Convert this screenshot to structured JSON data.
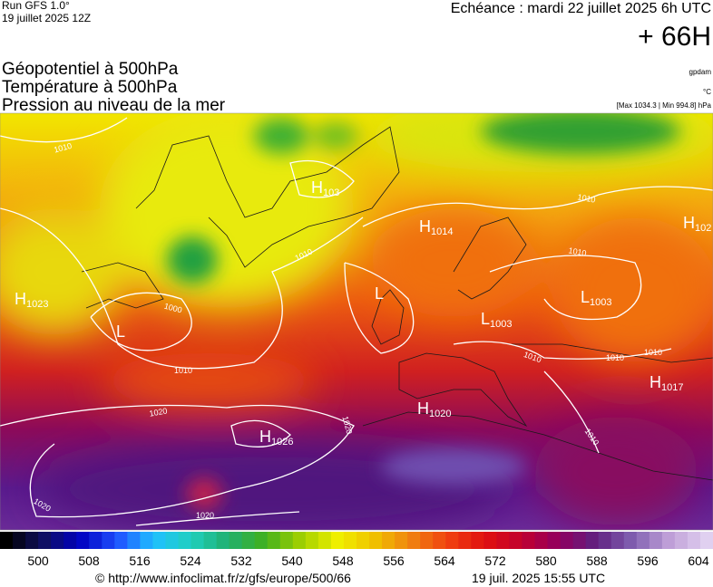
{
  "header": {
    "run": "Run GFS 1.0°",
    "run_date": "19 juillet 2025 12Z",
    "valid": "Echéance : mardi 22 juillet 2025 6h UTC",
    "lead": "+ 66H",
    "fields": [
      "Géopotentiel à 500hPa",
      "Température à 500hPa",
      "Pression au niveau de la mer"
    ],
    "units": [
      "gpdam",
      "°C",
      "[Max 1034.3 | Min 994.8] hPa"
    ]
  },
  "pressure_centers": [
    {
      "type": "H",
      "value": "1023"
    },
    {
      "type": "L",
      "value": null
    },
    {
      "type": "H",
      "value": "103"
    },
    {
      "type": "H",
      "value": "1014"
    },
    {
      "type": "H",
      "value": "102"
    },
    {
      "type": "L",
      "value": null
    },
    {
      "type": "L",
      "value": "1003"
    },
    {
      "type": "L",
      "value": "1003"
    },
    {
      "type": "H",
      "value": "1020"
    },
    {
      "type": "H",
      "value": "1026"
    },
    {
      "type": "H",
      "value": "1017"
    }
  ],
  "isobar_labels": [
    "1010",
    "1010",
    "1010",
    "1010",
    "1000",
    "1010",
    "1020",
    "1020",
    "1020",
    "1020",
    "1010",
    "1010",
    "1010",
    "1010"
  ],
  "colorbar": {
    "stops": [
      "#000000",
      "#101060",
      "#0000c0",
      "#2050ff",
      "#20c0ff",
      "#20d0c0",
      "#20b070",
      "#40b020",
      "#a0d000",
      "#f0f000",
      "#f0c000",
      "#f08010",
      "#f04010",
      "#e01010",
      "#c00030",
      "#900060",
      "#602080",
      "#8060b0",
      "#c0a0d8",
      "#e0d0f0"
    ],
    "ticks": [
      500,
      508,
      516,
      524,
      532,
      540,
      548,
      556,
      564,
      572,
      580,
      588,
      596,
      604
    ]
  },
  "footer": {
    "url": "© http://www.infoclimat.fr/z/gfs/europe/500/66",
    "timestamp": "19 juil. 2025 15:55 UTC"
  }
}
